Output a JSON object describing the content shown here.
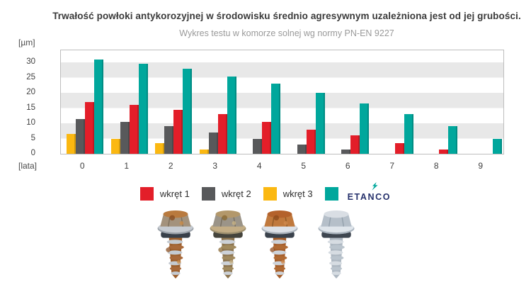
{
  "chart_data": {
    "type": "bar",
    "title": "Trwałość powłoki antykorozyjnej w środowisku średnio agresywnym uzależniona jest od jej grubości.",
    "subtitle": "Wykres testu w komorze solnej wg normy PN-EN 9227",
    "categories": [
      "0",
      "1",
      "2",
      "3",
      "4",
      "5",
      "6",
      "7",
      "8",
      "9"
    ],
    "xlabel": "[lata]",
    "ylabel": "[µm]",
    "ylim": [
      0,
      34
    ],
    "y_ticks": [
      0,
      5,
      10,
      15,
      20,
      25,
      30
    ],
    "grid": "horizontal-stripes",
    "legend_position": "bottom",
    "series": [
      {
        "name": "wkręt 1",
        "color": "#e31e29",
        "values": [
          17,
          16,
          14.5,
          13,
          10.5,
          8,
          6,
          3.5,
          1.5,
          0
        ]
      },
      {
        "name": "wkręt 2",
        "color": "#58595b",
        "values": [
          11.5,
          10.5,
          9,
          7,
          5,
          3,
          1.5,
          0,
          0,
          0
        ]
      },
      {
        "name": "wkręt 3",
        "color": "#fbb811",
        "values": [
          6.5,
          5,
          3.5,
          1.5,
          0,
          0,
          0,
          0,
          0,
          0
        ]
      },
      {
        "name": "ETANCO",
        "color": "#00a79c",
        "values": [
          31,
          29.5,
          28,
          25.5,
          23,
          20,
          16.5,
          13,
          9,
          5
        ]
      }
    ],
    "series_draw_order": [
      2,
      1,
      0,
      3
    ]
  },
  "legend": {
    "items": [
      {
        "label": "wkręt 1",
        "color": "#e31e29"
      },
      {
        "label": "wkręt 2",
        "color": "#58595b"
      },
      {
        "label": "wkręt 3",
        "color": "#fbb811"
      },
      {
        "label": "ETANCO",
        "color": "#00a79c",
        "logo": true
      }
    ],
    "logo_text_color": "#26316c"
  },
  "images": {
    "screw_photos": [
      "corroded-screw-1",
      "corroded-screw-2",
      "corroded-screw-3",
      "clean-etanco-screw"
    ]
  }
}
